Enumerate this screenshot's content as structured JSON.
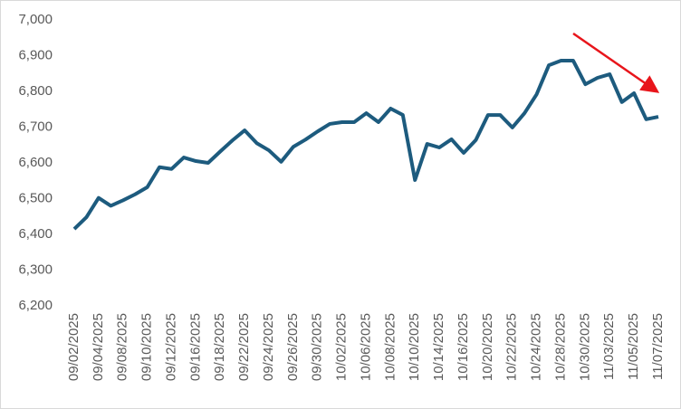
{
  "chart_data": {
    "type": "line",
    "categories": [
      "09/02/2025",
      null,
      "09/04/2025",
      null,
      "09/08/2025",
      null,
      "09/10/2025",
      null,
      "09/12/2025",
      null,
      "09/16/2025",
      null,
      "09/18/2025",
      null,
      "09/22/2025",
      null,
      "09/24/2025",
      null,
      "09/26/2025",
      null,
      "09/30/2025",
      null,
      "10/02/2025",
      null,
      "10/06/2025",
      null,
      "10/08/2025",
      null,
      "10/10/2025",
      null,
      "10/14/2025",
      null,
      "10/16/2025",
      null,
      "10/20/2025",
      null,
      "10/22/2025",
      null,
      "10/24/2025",
      null,
      "10/28/2025",
      null,
      "10/30/2025",
      null,
      "11/03/2025",
      null,
      "11/05/2025",
      null,
      "11/07/2025"
    ],
    "values": [
      6415,
      6448,
      6502,
      6480,
      6495,
      6512,
      6532,
      6588,
      6583,
      6615,
      6605,
      6600,
      6632,
      6663,
      6691,
      6655,
      6635,
      6603,
      6645,
      6665,
      6688,
      6709,
      6714,
      6714,
      6739,
      6714,
      6752,
      6734,
      6552,
      6653,
      6643,
      6666,
      6628,
      6664,
      6734,
      6734,
      6699,
      6739,
      6792,
      6873,
      6886,
      6886,
      6820,
      6838,
      6848,
      6770,
      6795,
      6722,
      6729
    ],
    "color": "#1d5b7e",
    "ylim": [
      6200,
      7000
    ],
    "yticks": [
      {
        "value": 6200,
        "label": "6,200"
      },
      {
        "value": 6300,
        "label": "6,300"
      },
      {
        "value": 6400,
        "label": "6,400"
      },
      {
        "value": 6500,
        "label": "6,500"
      },
      {
        "value": 6600,
        "label": "6,600"
      },
      {
        "value": 6700,
        "label": "6,700"
      },
      {
        "value": 6800,
        "label": "6,800"
      },
      {
        "value": 6900,
        "label": "6,900"
      },
      {
        "value": 7000,
        "label": "7,000"
      }
    ],
    "grid": false
  }
}
